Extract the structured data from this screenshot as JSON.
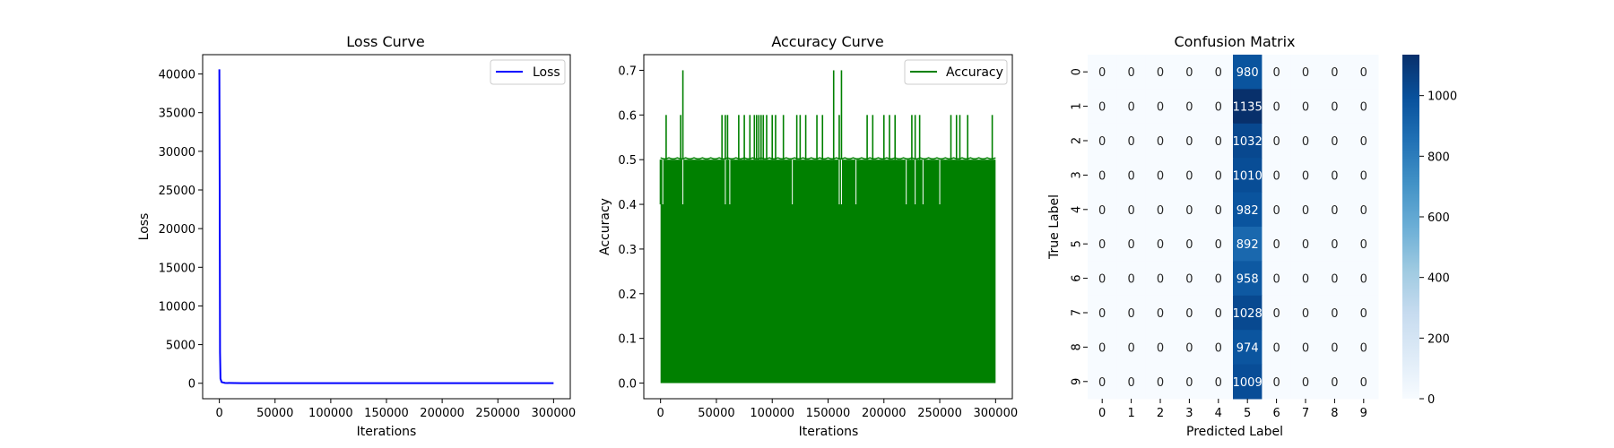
{
  "chart_data": [
    {
      "type": "line",
      "title": "Loss Curve",
      "xlabel": "Iterations",
      "ylabel": "Loss",
      "xlim": [
        -15000,
        315000
      ],
      "ylim": [
        -2000,
        42500
      ],
      "xticks": [
        0,
        50000,
        100000,
        150000,
        200000,
        250000,
        300000
      ],
      "xtick_labels": [
        "0",
        "50000",
        "100000",
        "150000",
        "200000",
        "250000",
        "300000"
      ],
      "yticks": [
        0,
        5000,
        10000,
        15000,
        20000,
        25000,
        30000,
        35000,
        40000
      ],
      "ytick_labels": [
        "0",
        "5000",
        "10000",
        "15000",
        "20000",
        "25000",
        "30000",
        "35000",
        "40000"
      ],
      "legend_position": "top-right",
      "series": [
        {
          "name": "Loss",
          "color": "#0000ff",
          "x": [
            0,
            300,
            600,
            1000,
            2000,
            5000,
            20000,
            50000,
            100000,
            150000,
            200000,
            250000,
            300000
          ],
          "y": [
            40600,
            25000,
            4000,
            600,
            150,
            40,
            20,
            15,
            15,
            15,
            15,
            15,
            15
          ]
        }
      ],
      "grid": false
    },
    {
      "type": "line",
      "title": "Accuracy Curve",
      "xlabel": "Iterations",
      "ylabel": "Accuracy",
      "xlim": [
        -15000,
        315000
      ],
      "ylim": [
        -0.035,
        0.735
      ],
      "xticks": [
        0,
        50000,
        100000,
        150000,
        200000,
        250000,
        300000
      ],
      "xtick_labels": [
        "0",
        "50000",
        "100000",
        "150000",
        "200000",
        "250000",
        "300000"
      ],
      "yticks": [
        0.0,
        0.1,
        0.2,
        0.3,
        0.4,
        0.5,
        0.6,
        0.7
      ],
      "ytick_labels": [
        "0.0",
        "0.1",
        "0.2",
        "0.3",
        "0.4",
        "0.5",
        "0.6",
        "0.7"
      ],
      "legend_position": "top-right",
      "series": [
        {
          "name": "Accuracy",
          "color": "#008000",
          "x_range": [
            0,
            300000
          ],
          "y_min": 0.0,
          "y_max_typical": 0.5,
          "spikes_0_6": [
            5000,
            18000,
            55000,
            58000,
            60000,
            70000,
            75000,
            80000,
            84000,
            86000,
            88000,
            90000,
            92000,
            95000,
            100000,
            103000,
            110000,
            122000,
            125000,
            130000,
            140000,
            145000,
            160000,
            185000,
            190000,
            200000,
            205000,
            210000,
            225000,
            228000,
            232000,
            260000,
            265000,
            268000,
            275000,
            297000
          ],
          "spikes_0_7": [
            20000,
            155000,
            162000
          ],
          "dips_0_4": [
            2000,
            20000,
            58000,
            62000,
            118000,
            160000,
            162000,
            175000,
            220000,
            228000,
            235000,
            250000
          ]
        }
      ],
      "grid": false
    },
    {
      "type": "heatmap",
      "title": "Confusion Matrix",
      "xlabel": "Predicted Label",
      "ylabel": "True Label",
      "x_categories": [
        "0",
        "1",
        "2",
        "3",
        "4",
        "5",
        "6",
        "7",
        "8",
        "9"
      ],
      "y_categories": [
        "0",
        "1",
        "2",
        "3",
        "4",
        "5",
        "6",
        "7",
        "8",
        "9"
      ],
      "values": [
        [
          0,
          0,
          0,
          0,
          0,
          980,
          0,
          0,
          0,
          0
        ],
        [
          0,
          0,
          0,
          0,
          0,
          1135,
          0,
          0,
          0,
          0
        ],
        [
          0,
          0,
          0,
          0,
          0,
          1032,
          0,
          0,
          0,
          0
        ],
        [
          0,
          0,
          0,
          0,
          0,
          1010,
          0,
          0,
          0,
          0
        ],
        [
          0,
          0,
          0,
          0,
          0,
          982,
          0,
          0,
          0,
          0
        ],
        [
          0,
          0,
          0,
          0,
          0,
          892,
          0,
          0,
          0,
          0
        ],
        [
          0,
          0,
          0,
          0,
          0,
          958,
          0,
          0,
          0,
          0
        ],
        [
          0,
          0,
          0,
          0,
          0,
          1028,
          0,
          0,
          0,
          0
        ],
        [
          0,
          0,
          0,
          0,
          0,
          974,
          0,
          0,
          0,
          0
        ],
        [
          0,
          0,
          0,
          0,
          0,
          1009,
          0,
          0,
          0,
          0
        ]
      ],
      "colormap": "Blues",
      "colorbar_range": [
        0,
        1135
      ],
      "colorbar_ticks": [
        0,
        200,
        400,
        600,
        800,
        1000
      ],
      "colorbar_tick_labels": [
        "0",
        "200",
        "400",
        "600",
        "800",
        "1000"
      ]
    }
  ]
}
